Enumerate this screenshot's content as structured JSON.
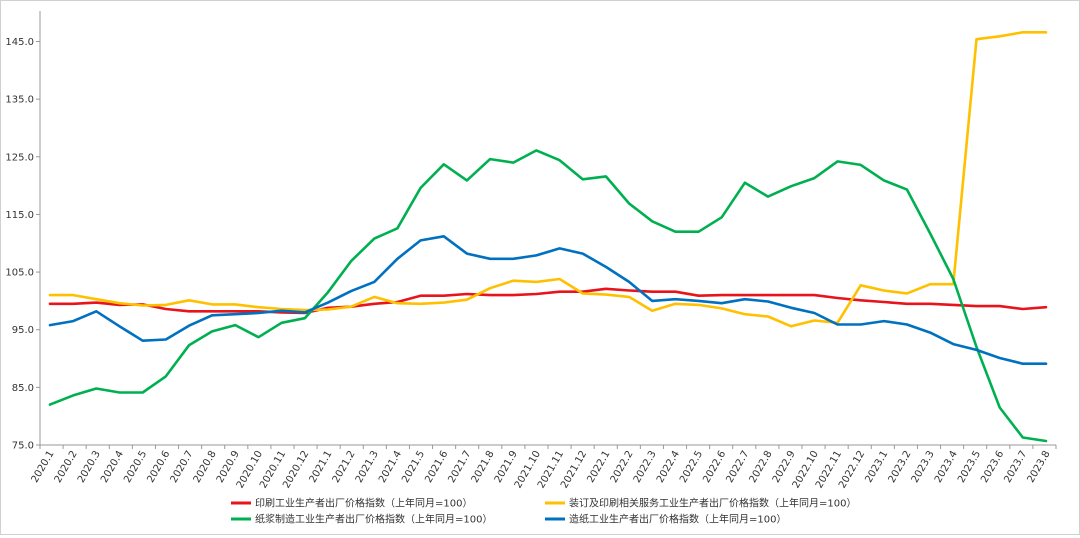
{
  "chart_data": {
    "type": "line",
    "title": "",
    "xlabel": "",
    "ylabel": "",
    "ylim": [
      75,
      150
    ],
    "yticks": [
      "145.0",
      "135.0",
      "125.0",
      "115.0",
      "105.0",
      "95.0",
      "85.0",
      "75.0"
    ],
    "ytick_values": [
      145,
      135,
      125,
      115,
      105,
      95,
      85,
      75
    ],
    "grid": false,
    "legend_position": "bottom",
    "categories": [
      "2020.1",
      "2020.2",
      "2020.3",
      "2020.4",
      "2020.5",
      "2020.6",
      "2020.7",
      "2020.8",
      "2020.9",
      "2020.10",
      "2020.11",
      "2020.12",
      "2021.1",
      "2021.2",
      "2021.3",
      "2021.4",
      "2021.5",
      "2021.6",
      "2021.7",
      "2021.8",
      "2021.9",
      "2021.10",
      "2021.11",
      "2021.12",
      "2022.1",
      "2022.2",
      "2022.3",
      "2022.4",
      "2022.5",
      "2022.6",
      "2022.7",
      "2022.8",
      "2022.9",
      "2022.10",
      "2022.11",
      "2022.12",
      "2023.1",
      "2023.2",
      "2023.3",
      "2023.4",
      "2023.5",
      "2023.6",
      "2023.7",
      "2023.8"
    ],
    "series": [
      {
        "name": "印刷工业生产者出厂价格指数（上年同月=100）",
        "color": "#e8141b",
        "values": [
          99.5,
          99.5,
          99.7,
          99.3,
          99.4,
          98.6,
          98.2,
          98.2,
          98.2,
          98.2,
          98.0,
          97.9,
          98.8,
          99.0,
          99.5,
          99.8,
          100.9,
          100.9,
          101.2,
          101.0,
          101.0,
          101.2,
          101.6,
          101.6,
          102.1,
          101.8,
          101.6,
          101.6,
          100.9,
          101.0,
          101.0,
          101.0,
          101.0,
          101.0,
          100.5,
          100.1,
          99.8,
          99.5,
          99.5,
          99.3,
          99.1,
          99.1,
          98.6,
          98.9
        ]
      },
      {
        "name": "装订及印刷相关服务工业生产者出厂价格指数（上年同月=100）",
        "color": "#ffc000",
        "values": [
          101.0,
          101.0,
          100.3,
          99.6,
          99.2,
          99.3,
          100.1,
          99.4,
          99.4,
          98.9,
          98.6,
          98.4,
          98.5,
          99.0,
          100.7,
          99.6,
          99.5,
          99.7,
          100.2,
          102.2,
          103.5,
          103.3,
          103.8,
          101.3,
          101.1,
          100.7,
          98.3,
          99.5,
          99.3,
          98.7,
          97.7,
          97.3,
          95.6,
          96.6,
          96.2,
          102.7,
          101.8,
          101.3,
          102.9,
          102.9,
          145.4,
          145.9,
          146.6,
          146.6
        ]
      },
      {
        "name": "纸浆制造工业生产者出厂价格指数（上年同月=100）",
        "color": "#00b050",
        "values": [
          82.0,
          83.6,
          84.8,
          84.1,
          84.1,
          86.9,
          92.3,
          94.7,
          95.8,
          93.7,
          96.2,
          97.0,
          101.5,
          106.9,
          110.8,
          112.6,
          119.6,
          123.7,
          120.9,
          124.6,
          124.0,
          126.1,
          124.4,
          121.1,
          121.6,
          116.9,
          113.8,
          112.0,
          112.0,
          114.5,
          120.5,
          118.1,
          119.9,
          121.3,
          124.2,
          123.6,
          120.9,
          119.3,
          111.7,
          103.8,
          92.0,
          81.5,
          76.3,
          75.7
        ]
      },
      {
        "name": "造纸工业生产者出厂价格指数（上年同月=100）",
        "color": "#0070c0",
        "values": [
          95.8,
          96.5,
          98.2,
          95.6,
          93.1,
          93.3,
          95.7,
          97.5,
          97.7,
          97.9,
          98.3,
          98.0,
          99.7,
          101.7,
          103.3,
          107.3,
          110.5,
          111.2,
          108.2,
          107.3,
          107.3,
          107.9,
          109.1,
          108.2,
          105.9,
          103.3,
          100.0,
          100.3,
          100.0,
          99.6,
          100.3,
          99.9,
          98.8,
          97.9,
          95.9,
          95.9,
          96.5,
          95.9,
          94.5,
          92.5,
          91.5,
          90.1,
          89.1,
          89.1
        ]
      }
    ]
  }
}
